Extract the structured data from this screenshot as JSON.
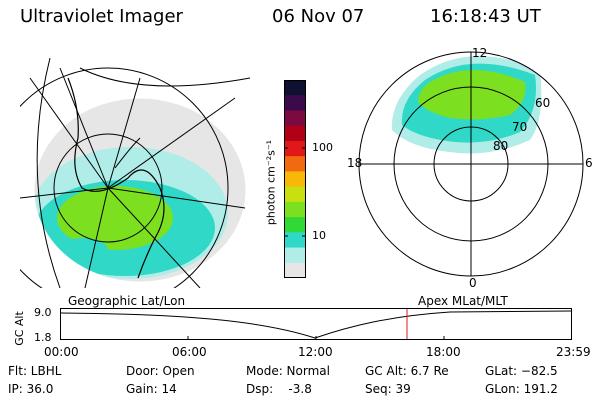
{
  "header": {
    "instrument": "Ultraviolet Imager",
    "date": "06 Nov 07",
    "time": "16:18:43 UT"
  },
  "colorbar": {
    "unit_label": "photon cm⁻²s⁻¹",
    "ticks": [
      "100",
      "10"
    ],
    "colors": [
      "#101030",
      "#3a0a4a",
      "#7a0a40",
      "#b00018",
      "#e01818",
      "#f06a10",
      "#f8b808",
      "#c8e010",
      "#7ce020",
      "#30d838",
      "#30d8c8",
      "#b0ece8",
      "#e6e6e6"
    ]
  },
  "polar_plot": {
    "mlat_labels": [
      "60",
      "70",
      "80"
    ],
    "mlt_labels": {
      "top": "12",
      "right": "6",
      "bottom": "0",
      "left": "18"
    }
  },
  "map_labels": {
    "left_title": "Geographic Lat/Lon",
    "right_title": "Apex MLat/MLT"
  },
  "altitude_plot": {
    "axis_label": "GC Alt",
    "y_ticks": [
      "9.0",
      "1.8"
    ],
    "x_ticks": [
      "00:00",
      "06:00",
      "12:00",
      "18:00",
      "23:59"
    ]
  },
  "status": {
    "flt": "Flt: LBHL",
    "ip": "IP: 36.0",
    "door": "Door: Open",
    "gain": "Gain: 14",
    "mode": "Mode: Normal",
    "dsp": "Dsp:    -3.8",
    "gc_alt": "GC Alt: 6.7 Re",
    "seq": "Seq: 39",
    "glat": "GLat: −82.5",
    "glon": "GLon: 191.2"
  }
}
